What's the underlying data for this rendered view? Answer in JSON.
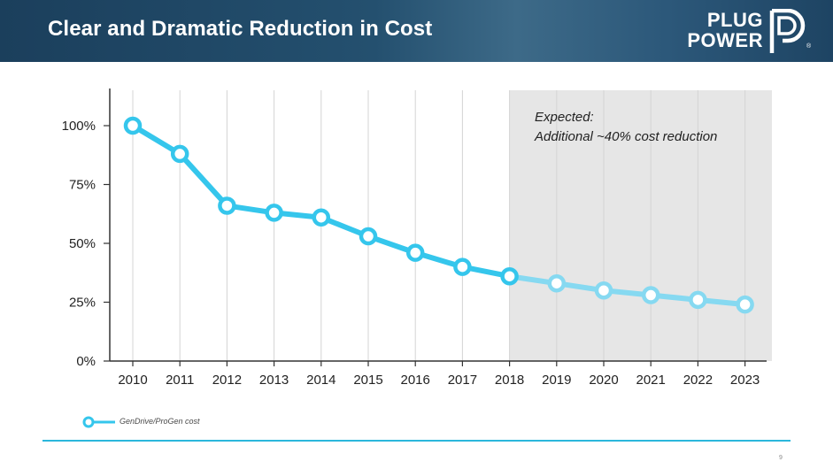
{
  "header": {
    "title": "Clear and Dramatic Reduction in Cost",
    "logo_line1": "PLUG",
    "logo_line2": "POWER",
    "logo_reg": "®"
  },
  "chart_data": {
    "type": "line",
    "categories": [
      "2010",
      "2011",
      "2012",
      "2013",
      "2014",
      "2015",
      "2016",
      "2017",
      "2018",
      "2019",
      "2020",
      "2021",
      "2022",
      "2023"
    ],
    "series": [
      {
        "name": "GenDrive/ProGen cost",
        "values": [
          100,
          88,
          66,
          63,
          61,
          53,
          46,
          40,
          36,
          33,
          30,
          28,
          26,
          24
        ],
        "actual_through": "2018",
        "color": "#35c6ec",
        "projected_color": "#86d9f1"
      }
    ],
    "ylim": [
      0,
      110
    ],
    "yticks": [
      0,
      25,
      50,
      75,
      100
    ],
    "ytick_labels": [
      "0%",
      "25%",
      "50%",
      "75%",
      "100%"
    ],
    "shaded_region": {
      "from": "2018",
      "to": "2023+",
      "color": "#e6e6e6"
    },
    "annotation": {
      "line1": "Expected:",
      "line2": "Additional ~40% cost reduction"
    },
    "gridlines": "vertical",
    "legend_position": "bottom-left"
  },
  "legend": {
    "label": "GenDrive/ProGen cost"
  },
  "footer": {
    "page_number": "9"
  }
}
